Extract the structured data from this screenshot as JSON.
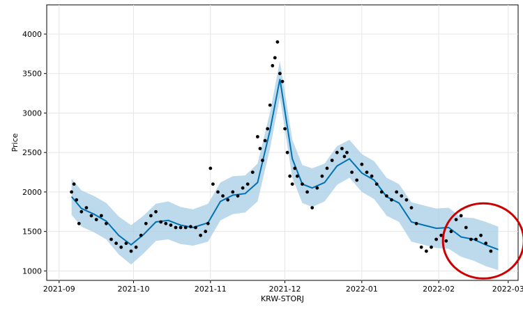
{
  "chart_data": {
    "type": "line",
    "xlabel": "KRW-STORJ",
    "ylabel": "Price",
    "x_tick_labels": [
      "2021-09",
      "2021-10",
      "2021-11",
      "2021-12",
      "2022-01",
      "2022-02",
      "2022-03"
    ],
    "y_tick_labels": [
      "1000",
      "1500",
      "2000",
      "2500",
      "3000",
      "3500",
      "4000"
    ],
    "ylim": [
      880,
      4370
    ],
    "xlim": [
      "2021-08-27",
      "2022-03-05"
    ],
    "grid": true,
    "series": [
      {
        "role": "forecast",
        "x": [
          "2021-09-06",
          "2021-09-10",
          "2021-09-15",
          "2021-09-20",
          "2021-09-25",
          "2021-09-30",
          "2021-10-05",
          "2021-10-10",
          "2021-10-15",
          "2021-10-20",
          "2021-10-25",
          "2021-10-31",
          "2021-11-05",
          "2021-11-10",
          "2021-11-15",
          "2021-11-20",
          "2021-11-25",
          "2021-11-29",
          "2021-12-04",
          "2021-12-08",
          "2021-12-12",
          "2021-12-17",
          "2021-12-22",
          "2021-12-27",
          "2022-01-01",
          "2022-01-06",
          "2022-01-11",
          "2022-01-16",
          "2022-01-21",
          "2022-01-26",
          "2022-01-31",
          "2022-02-05",
          "2022-02-10",
          "2022-02-15",
          "2022-02-20",
          "2022-02-25"
        ],
        "y": [
          1940,
          1790,
          1720,
          1630,
          1450,
          1330,
          1460,
          1620,
          1640,
          1580,
          1550,
          1610,
          1880,
          1960,
          1980,
          2120,
          2780,
          3430,
          2420,
          2100,
          2050,
          2120,
          2330,
          2420,
          2240,
          2150,
          1940,
          1860,
          1620,
          1580,
          1540,
          1550,
          1430,
          1400,
          1330,
          1270
        ]
      },
      {
        "role": "uncertainty-upper",
        "x": [
          "2021-09-06",
          "2021-09-10",
          "2021-09-15",
          "2021-09-20",
          "2021-09-25",
          "2021-09-30",
          "2021-10-05",
          "2021-10-10",
          "2021-10-15",
          "2021-10-20",
          "2021-10-25",
          "2021-10-31",
          "2021-11-05",
          "2021-11-10",
          "2021-11-15",
          "2021-11-20",
          "2021-11-25",
          "2021-11-29",
          "2021-12-04",
          "2021-12-08",
          "2021-12-12",
          "2021-12-17",
          "2021-12-22",
          "2021-12-27",
          "2022-01-01",
          "2022-01-06",
          "2022-01-11",
          "2022-01-16",
          "2022-01-21",
          "2022-01-26",
          "2022-01-31",
          "2022-02-05",
          "2022-02-10",
          "2022-02-15",
          "2022-02-20",
          "2022-02-25"
        ],
        "y": [
          2170,
          2020,
          1950,
          1860,
          1690,
          1580,
          1700,
          1850,
          1880,
          1810,
          1780,
          1850,
          2120,
          2200,
          2210,
          2360,
          3010,
          3660,
          2660,
          2340,
          2300,
          2360,
          2580,
          2660,
          2480,
          2390,
          2180,
          2100,
          1870,
          1830,
          1790,
          1800,
          1680,
          1670,
          1620,
          1560
        ]
      },
      {
        "role": "uncertainty-lower",
        "x": [
          "2021-09-06",
          "2021-09-10",
          "2021-09-15",
          "2021-09-20",
          "2021-09-25",
          "2021-09-30",
          "2021-10-05",
          "2021-10-10",
          "2021-10-15",
          "2021-10-20",
          "2021-10-25",
          "2021-10-31",
          "2021-11-05",
          "2021-11-10",
          "2021-11-15",
          "2021-11-20",
          "2021-11-25",
          "2021-11-29",
          "2021-12-04",
          "2021-12-08",
          "2021-12-12",
          "2021-12-17",
          "2021-12-22",
          "2021-12-27",
          "2022-01-01",
          "2022-01-06",
          "2022-01-11",
          "2022-01-16",
          "2022-01-21",
          "2022-01-26",
          "2022-01-31",
          "2022-02-05",
          "2022-02-10",
          "2022-02-15",
          "2022-02-20",
          "2022-02-25"
        ],
        "y": [
          1710,
          1560,
          1490,
          1400,
          1210,
          1080,
          1220,
          1380,
          1400,
          1340,
          1320,
          1370,
          1640,
          1720,
          1740,
          1880,
          2550,
          3200,
          2180,
          1860,
          1810,
          1880,
          2090,
          2180,
          2000,
          1910,
          1700,
          1620,
          1370,
          1330,
          1290,
          1280,
          1180,
          1130,
          1060,
          1010
        ]
      },
      {
        "role": "actual",
        "x": [
          "2021-09-06",
          "2021-09-07",
          "2021-09-08",
          "2021-09-09",
          "2021-09-10",
          "2021-09-12",
          "2021-09-14",
          "2021-09-16",
          "2021-09-18",
          "2021-09-20",
          "2021-09-22",
          "2021-09-24",
          "2021-09-26",
          "2021-09-28",
          "2021-09-30",
          "2021-10-02",
          "2021-10-04",
          "2021-10-06",
          "2021-10-08",
          "2021-10-10",
          "2021-10-12",
          "2021-10-14",
          "2021-10-16",
          "2021-10-18",
          "2021-10-20",
          "2021-10-22",
          "2021-10-24",
          "2021-10-26",
          "2021-10-28",
          "2021-10-30",
          "2021-10-31",
          "2021-11-01",
          "2021-11-02",
          "2021-11-04",
          "2021-11-06",
          "2021-11-08",
          "2021-11-10",
          "2021-11-12",
          "2021-11-14",
          "2021-11-16",
          "2021-11-18",
          "2021-11-20",
          "2021-11-21",
          "2021-11-22",
          "2021-11-23",
          "2021-11-24",
          "2021-11-25",
          "2021-11-26",
          "2021-11-27",
          "2021-11-28",
          "2021-11-29",
          "2021-11-30",
          "2021-12-01",
          "2021-12-02",
          "2021-12-03",
          "2021-12-04",
          "2021-12-05",
          "2021-12-06",
          "2021-12-08",
          "2021-12-10",
          "2021-12-12",
          "2021-12-14",
          "2021-12-16",
          "2021-12-18",
          "2021-12-20",
          "2021-12-22",
          "2021-12-24",
          "2021-12-25",
          "2021-12-26",
          "2021-12-28",
          "2021-12-30",
          "2022-01-01",
          "2022-01-03",
          "2022-01-05",
          "2022-01-07",
          "2022-01-09",
          "2022-01-11",
          "2022-01-13",
          "2022-01-15",
          "2022-01-17",
          "2022-01-19",
          "2022-01-21",
          "2022-01-23",
          "2022-01-25",
          "2022-01-27",
          "2022-01-29",
          "2022-01-31",
          "2022-02-02",
          "2022-02-04",
          "2022-02-06",
          "2022-02-08",
          "2022-02-10",
          "2022-02-12",
          "2022-02-14",
          "2022-02-16",
          "2022-02-18",
          "2022-02-20",
          "2022-02-22"
        ],
        "y": [
          2000,
          2100,
          1900,
          1600,
          1750,
          1800,
          1700,
          1650,
          1700,
          1600,
          1400,
          1350,
          1300,
          1350,
          1250,
          1300,
          1450,
          1600,
          1700,
          1750,
          1620,
          1600,
          1580,
          1550,
          1550,
          1550,
          1560,
          1550,
          1450,
          1500,
          1600,
          2300,
          2100,
          2000,
          1950,
          1900,
          2000,
          1950,
          2050,
          2100,
          2250,
          2700,
          2550,
          2400,
          2650,
          2800,
          3100,
          3600,
          3700,
          3900,
          3500,
          3400,
          2800,
          2500,
          2200,
          2100,
          2300,
          2200,
          2100,
          2000,
          1800,
          2050,
          2200,
          2300,
          2400,
          2500,
          2550,
          2450,
          2500,
          2250,
          2150,
          2350,
          2250,
          2200,
          2100,
          2000,
          1950,
          1900,
          2000,
          1950,
          1900,
          1800,
          1600,
          1300,
          1250,
          1300,
          1400,
          1450,
          1380,
          1500,
          1650,
          1700,
          1550,
          1400,
          1400,
          1450,
          1350,
          1250
        ]
      }
    ],
    "annotations": [
      {
        "type": "circle-highlight",
        "color": "#cc0000",
        "center": [
          "2022-02-19",
          1380
        ]
      }
    ],
    "colors": {
      "forecast": "#0072b2",
      "band": "#a7cce5",
      "actual": "#000000",
      "grid": "#e5e5e5"
    }
  }
}
